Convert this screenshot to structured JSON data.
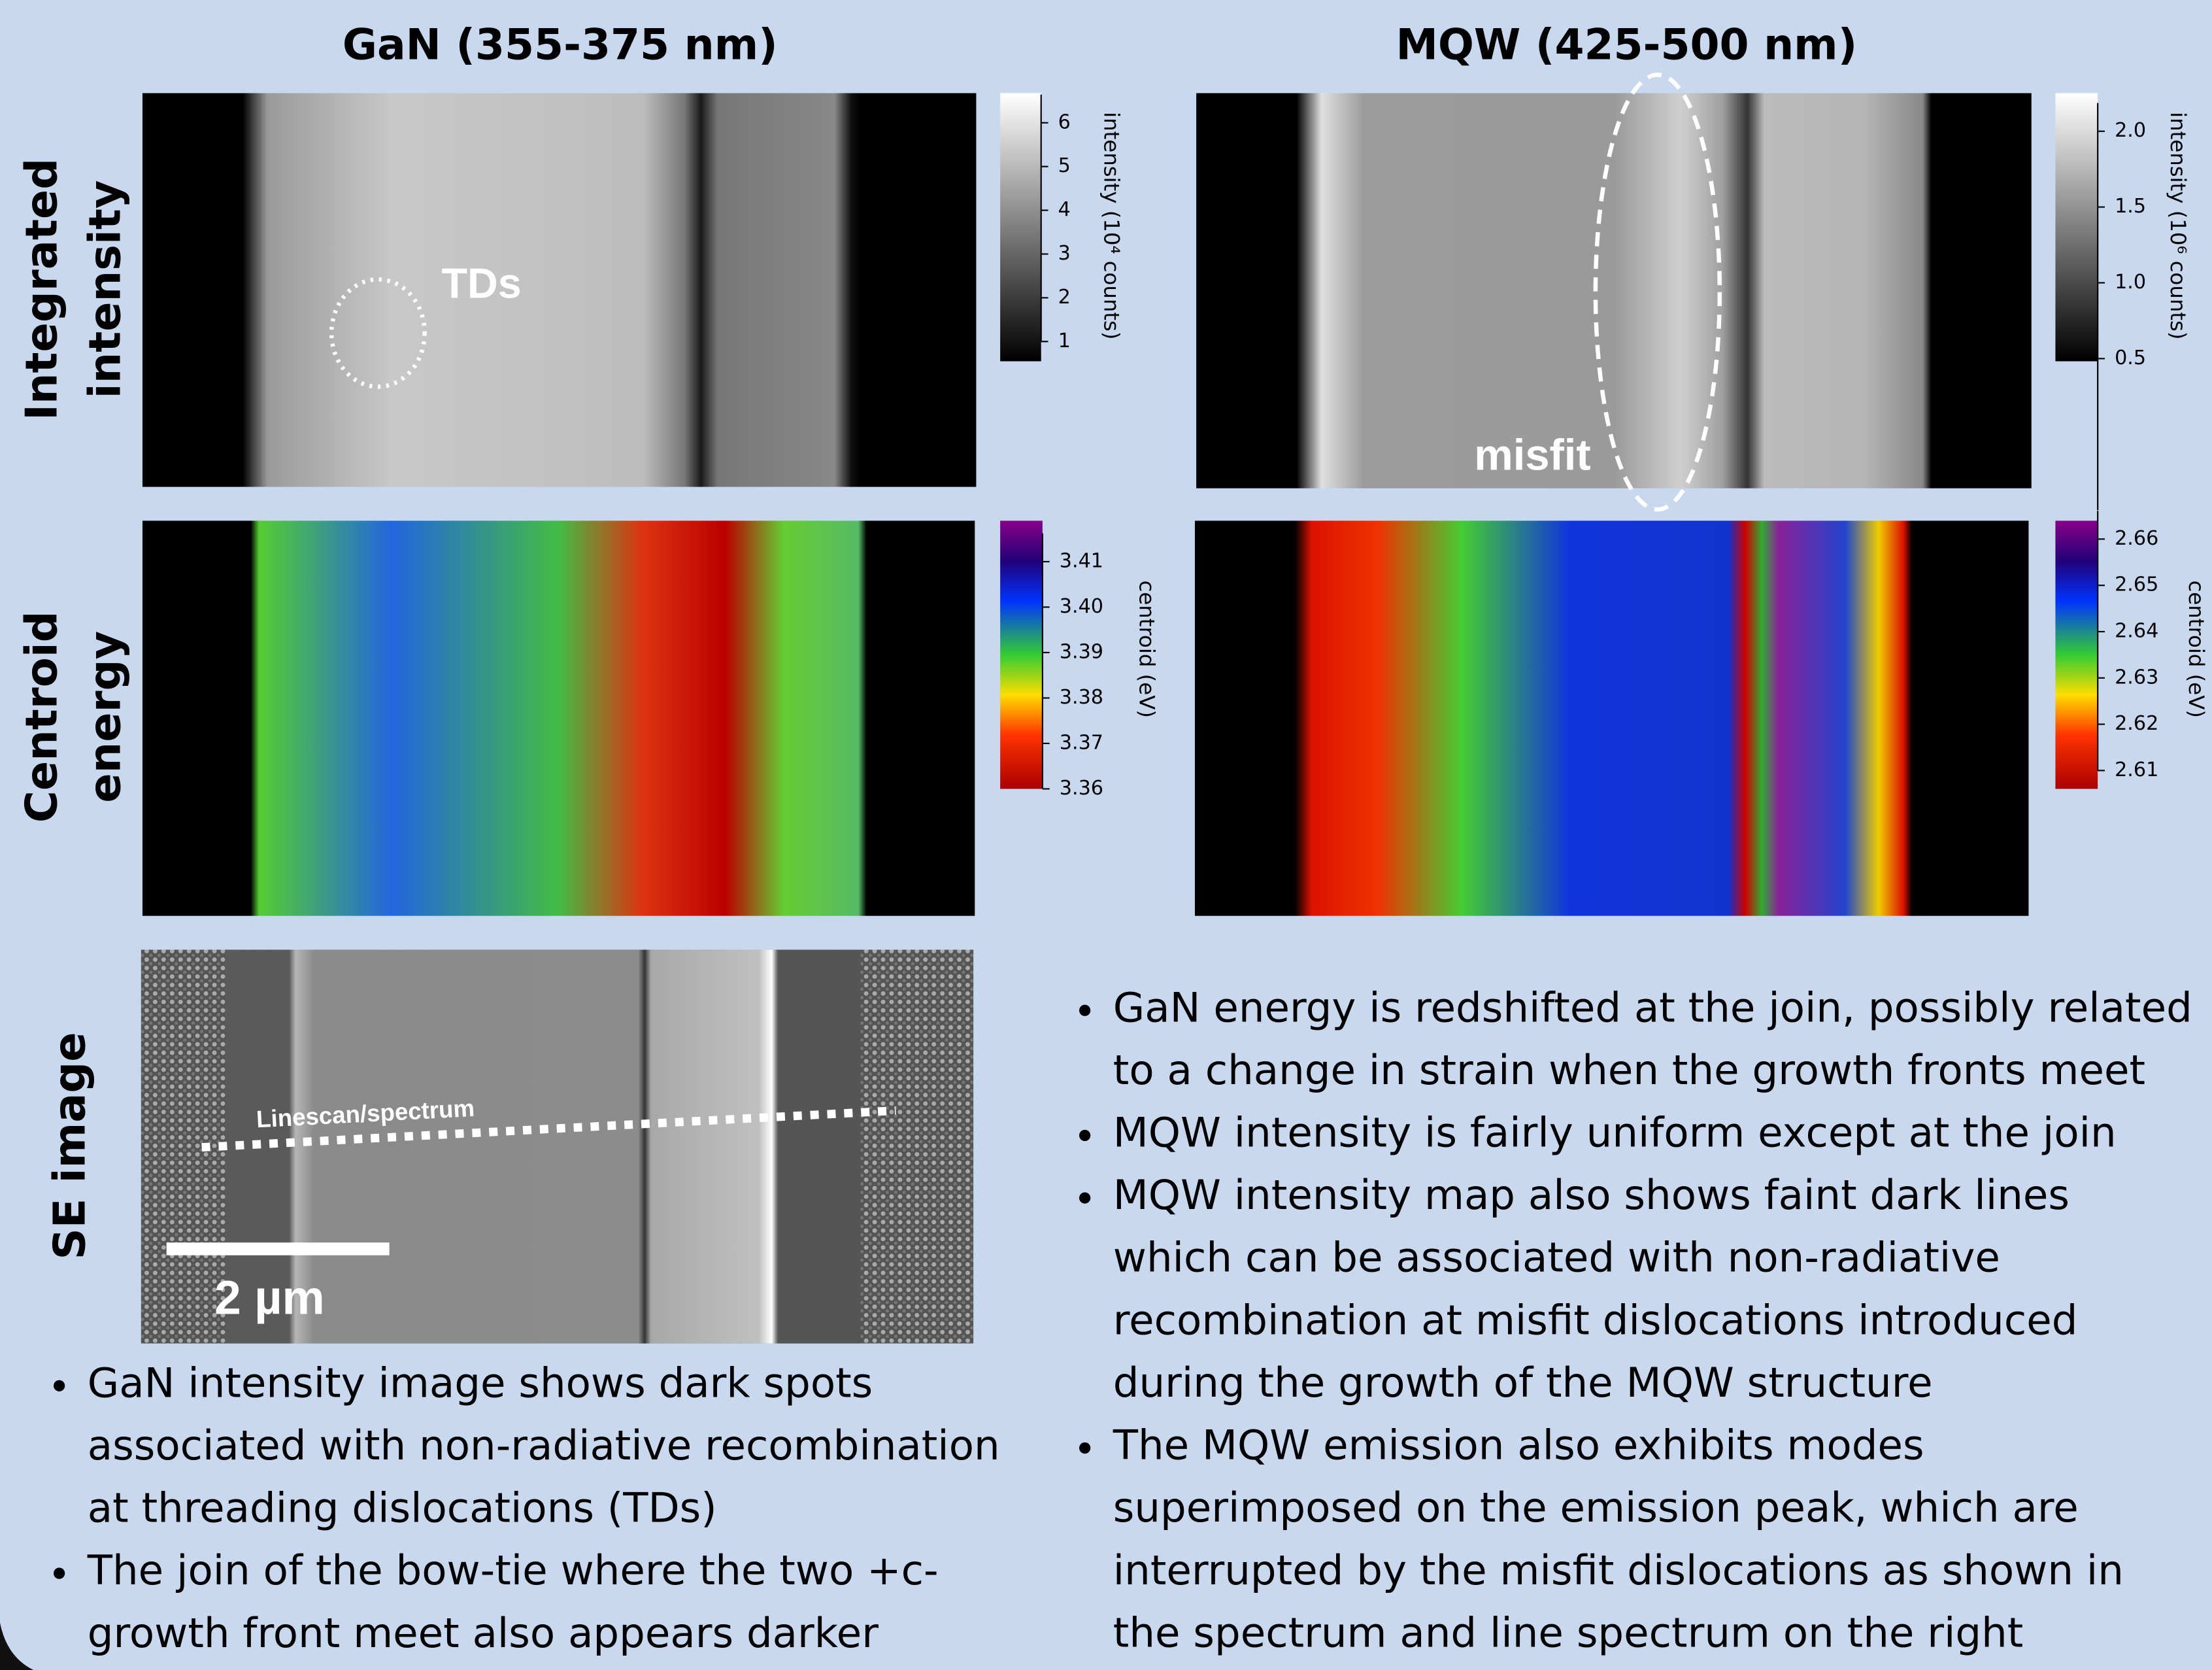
{
  "header": {
    "left_title": "GaN (355-375 nm)",
    "right_title": "MQW (425-500 nm)"
  },
  "row_labels": {
    "intensity": [
      "Integrated",
      "intensity"
    ],
    "centroid": [
      "Centroid",
      "energy"
    ],
    "se": "SE image"
  },
  "colorbars": {
    "gan_intensity": {
      "label": "intensity (10⁴ counts)",
      "ticks": [
        "6",
        "5",
        "4",
        "3",
        "2",
        "1"
      ]
    },
    "mqw_intensity": {
      "label": "intensity (10⁶ counts)",
      "ticks": [
        "2.0",
        "1.5",
        "1.0",
        "0.5"
      ]
    },
    "gan_centroid": {
      "label": "centroid (eV)",
      "ticks": [
        "3.41",
        "3.40",
        "3.39",
        "3.38",
        "3.37",
        "3.36"
      ]
    },
    "mqw_centroid": {
      "label": "centroid (eV)",
      "ticks": [
        "2.66",
        "2.65",
        "2.64",
        "2.63",
        "2.62",
        "2.61"
      ]
    }
  },
  "annotations": {
    "tds": "TDs",
    "misfit": "misfit",
    "linescan": "Linescan/spectrum",
    "scale": "2 µm"
  },
  "left_bullets": [
    [
      "GaN intensity image shows dark spots",
      "associated with non-radiative recombination",
      "at threading dislocations (TDs)"
    ],
    [
      "The join of the bow-tie where the two +c-",
      "growth front meet also appears darker"
    ]
  ],
  "right_bullets": [
    [
      "GaN energy is redshifted at the join, possibly related",
      "to a change in strain when the growth fronts meet"
    ],
    [
      "MQW intensity is fairly uniform except at the join"
    ],
    [
      "MQW intensity map also shows faint dark lines",
      "which can be associated with non-radiative",
      "recombination at misfit dislocations introduced",
      "during the growth of the MQW structure"
    ],
    [
      "The MQW emission also exhibits modes",
      "superimposed on the emission peak, which are",
      "interrupted by the misfit dislocations as shown in",
      "the spectrum and line spectrum on the right"
    ]
  ]
}
